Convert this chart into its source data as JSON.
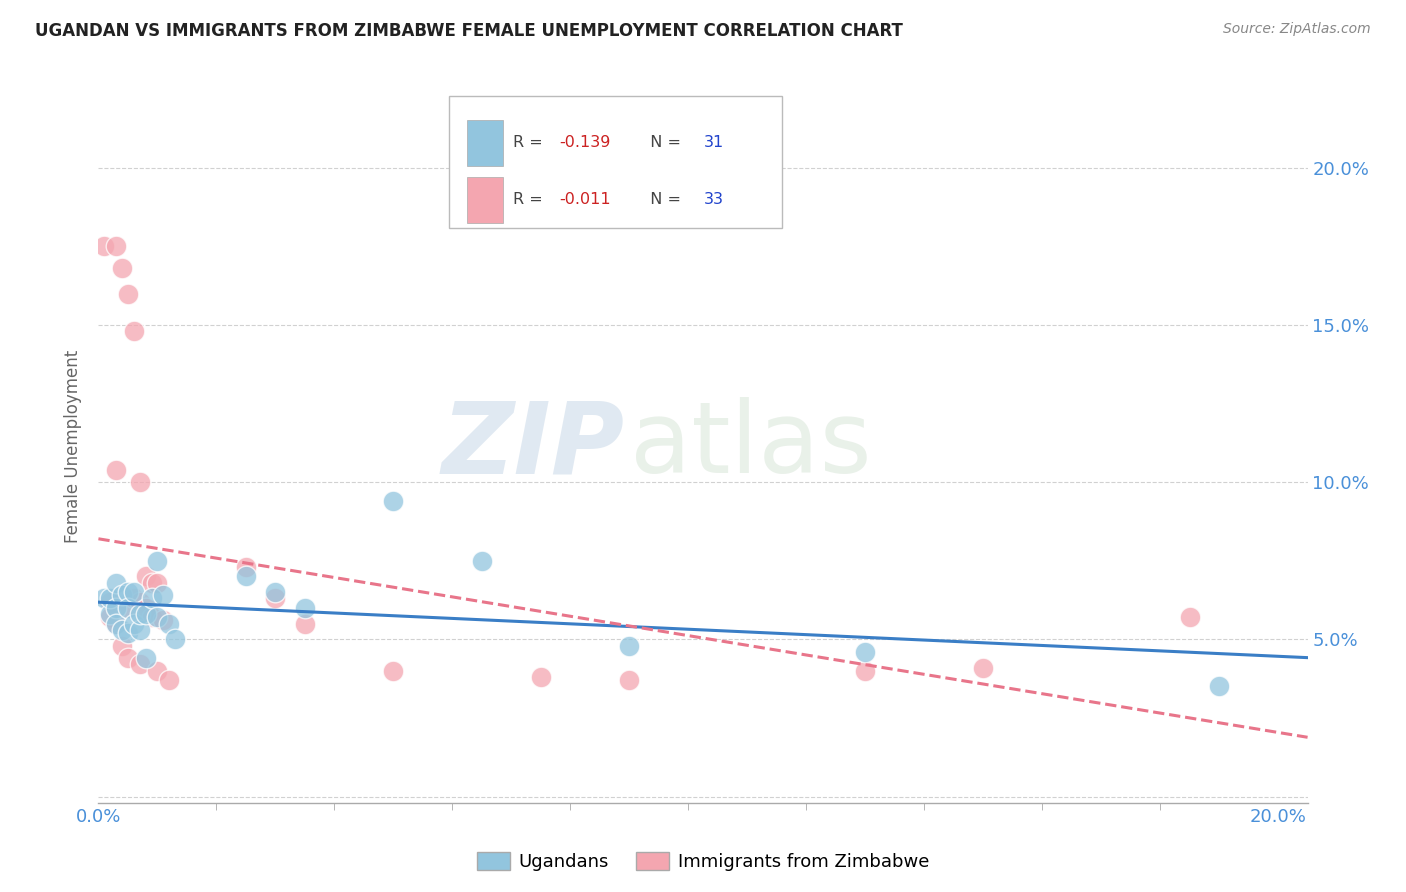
{
  "title": "UGANDAN VS IMMIGRANTS FROM ZIMBABWE FEMALE UNEMPLOYMENT CORRELATION CHART",
  "source": "Source: ZipAtlas.com",
  "ylabel": "Female Unemployment",
  "xlim": [
    0.0,
    0.205
  ],
  "ylim": [
    -0.002,
    0.225
  ],
  "xtick_vals": [
    0.0,
    0.2
  ],
  "xtick_labels": [
    "0.0%",
    "20.0%"
  ],
  "ytick_right_vals": [
    0.05,
    0.1,
    0.15,
    0.2
  ],
  "ytick_right_labels": [
    "5.0%",
    "10.0%",
    "15.0%",
    "20.0%"
  ],
  "ugandans_x": [
    0.001,
    0.002,
    0.002,
    0.003,
    0.003,
    0.003,
    0.004,
    0.004,
    0.005,
    0.005,
    0.005,
    0.006,
    0.006,
    0.007,
    0.007,
    0.008,
    0.008,
    0.009,
    0.01,
    0.01,
    0.011,
    0.012,
    0.013,
    0.025,
    0.03,
    0.035,
    0.05,
    0.065,
    0.09,
    0.13,
    0.19
  ],
  "ugandans_y": [
    0.063,
    0.058,
    0.063,
    0.06,
    0.055,
    0.068,
    0.064,
    0.053,
    0.065,
    0.052,
    0.06,
    0.065,
    0.055,
    0.053,
    0.058,
    0.058,
    0.044,
    0.063,
    0.057,
    0.075,
    0.064,
    0.055,
    0.05,
    0.07,
    0.065,
    0.06,
    0.094,
    0.075,
    0.048,
    0.046,
    0.035
  ],
  "zimbabwe_x": [
    0.001,
    0.002,
    0.002,
    0.003,
    0.003,
    0.003,
    0.004,
    0.004,
    0.005,
    0.005,
    0.005,
    0.006,
    0.006,
    0.007,
    0.007,
    0.007,
    0.008,
    0.008,
    0.009,
    0.009,
    0.01,
    0.01,
    0.011,
    0.012,
    0.025,
    0.03,
    0.035,
    0.05,
    0.075,
    0.09,
    0.13,
    0.15,
    0.185
  ],
  "zimbabwe_y": [
    0.175,
    0.062,
    0.057,
    0.175,
    0.055,
    0.104,
    0.168,
    0.048,
    0.16,
    0.06,
    0.044,
    0.063,
    0.148,
    0.062,
    0.042,
    0.1,
    0.07,
    0.06,
    0.068,
    0.057,
    0.068,
    0.04,
    0.056,
    0.037,
    0.073,
    0.063,
    0.055,
    0.04,
    0.038,
    0.037,
    0.04,
    0.041,
    0.057
  ],
  "ugandans_color": "#92C5DE",
  "zimbabwe_color": "#F4A6B0",
  "trend_uganda_color": "#3A7EC6",
  "trend_zimbabwe_color": "#E8758A",
  "ugandans_label": "Ugandans",
  "zimbabwe_label": "Immigrants from Zimbabwe",
  "R_uganda": "-0.139",
  "N_uganda": "31",
  "R_zimbabwe": "-0.011",
  "N_zimbabwe": "33",
  "watermark_zip": "ZIP",
  "watermark_atlas": "atlas",
  "background_color": "#ffffff",
  "grid_color": "#cccccc",
  "title_color": "#222222",
  "axis_tick_color": "#4A90D9",
  "ylabel_color": "#666666"
}
